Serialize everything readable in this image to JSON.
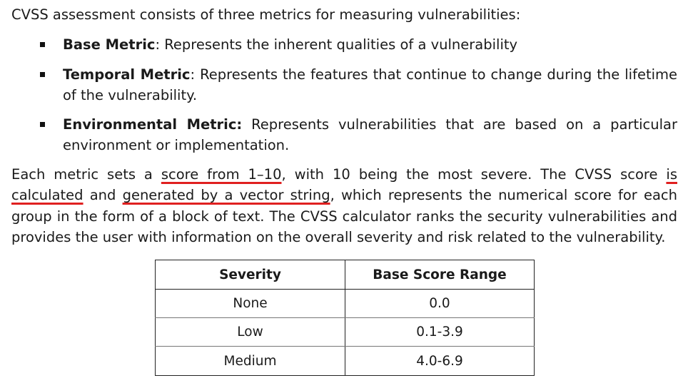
{
  "intro": "CVSS assessment consists of three metrics for measuring vulnerabilities:",
  "metrics": [
    {
      "term": "Base Metric",
      "sep": ":",
      "desc": " Represents the inherent qualities of a vulnerability"
    },
    {
      "term": "Temporal Metric",
      "sep": ":",
      "desc": " Represents the features that continue to change during the lifetime of the vulnerability."
    },
    {
      "term": "Environmental Metric:",
      "sep": "",
      "desc": " Represents vulnerabilities that are based on a particular environment or implementation."
    }
  ],
  "paragraph": {
    "p1": "Each metric sets a ",
    "u1": "score from 1–10",
    "p2": ", with 10 being the most severe. The CVSS score ",
    "u2": "is calculated",
    "p3": " and ",
    "u3": "generated by a vector string",
    "p4": ", which represents the numerical score for each group in the form of a block of text. The CVSS calculator ranks the security vulnerabilities and provides the user with information on the overall severity and risk related to the vulnerability."
  },
  "table": {
    "headers": [
      "Severity",
      "Base Score Range"
    ],
    "rows": [
      [
        "None",
        "0.0"
      ],
      [
        "Low",
        "0.1-3.9"
      ],
      [
        "Medium",
        "4.0-6.9"
      ]
    ]
  },
  "colors": {
    "underline": "#e02020",
    "text": "#1a1a1a"
  }
}
